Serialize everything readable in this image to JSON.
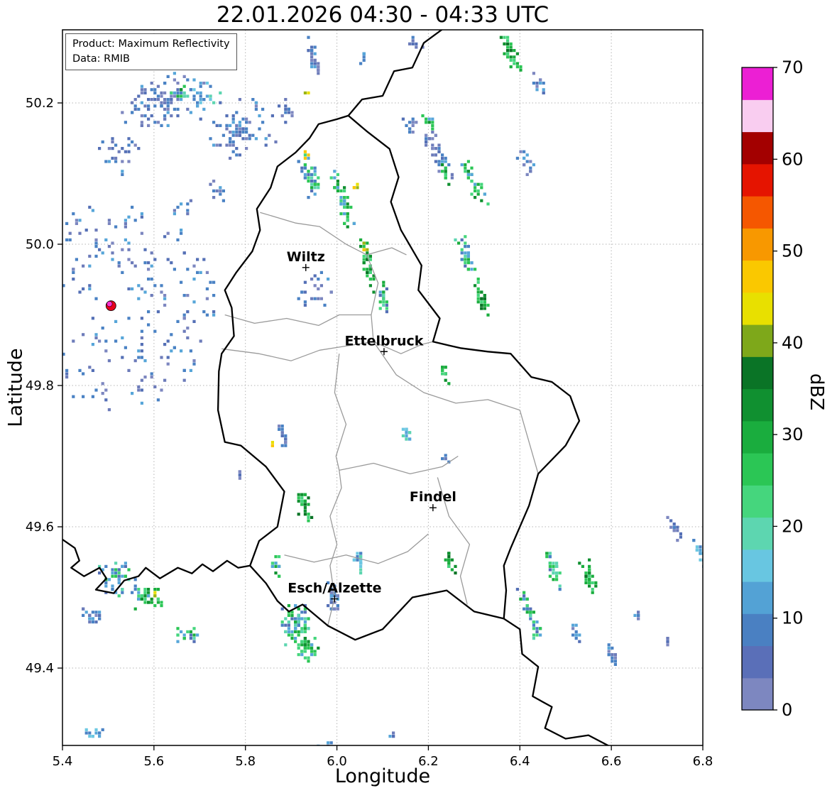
{
  "chart_data": {
    "type": "heatmap",
    "title": "22.01.2026 04:30 - 04:33 UTC",
    "xlabel": "Longitude",
    "ylabel": "Latitude",
    "xlim": [
      5.4,
      6.8
    ],
    "ylim": [
      49.29,
      50.3
    ],
    "x_ticks": [
      5.4,
      5.6,
      5.8,
      6.0,
      6.2,
      6.4,
      6.6,
      6.8
    ],
    "y_ticks": [
      49.4,
      49.6,
      49.8,
      50.0,
      50.2
    ],
    "grid": true,
    "annotations": {
      "product": "Product: Maximum Reflectivity",
      "source": "Data: RMIB"
    },
    "colorbar": {
      "label": "dBZ",
      "min": 0,
      "max": 70,
      "ticks": [
        0,
        10,
        20,
        30,
        40,
        50,
        60,
        70
      ],
      "colors": [
        "#7d87c0",
        "#5a6fb8",
        "#4a80c2",
        "#53a2d5",
        "#68c6e1",
        "#5dd6b0",
        "#45d67d",
        "#2bc655",
        "#1aad3e",
        "#109030",
        "#0a7426",
        "#7ea81a",
        "#e8e000",
        "#fac800",
        "#f89800",
        "#f55700",
        "#e51400",
        "#a30000",
        "#f9cdf0",
        "#ec1fd4"
      ]
    },
    "cities": [
      {
        "name": "Wiltz",
        "lon": 5.932,
        "lat": 49.967
      },
      {
        "name": "Ettelbruck",
        "lon": 6.103,
        "lat": 49.848
      },
      {
        "name": "Findel",
        "lon": 6.21,
        "lat": 49.627
      },
      {
        "name": "Esch/Alzette",
        "lon": 5.995,
        "lat": 49.498
      }
    ],
    "radar_site": {
      "lon": 5.506,
      "lat": 49.913,
      "outer_color": "#e8001c",
      "inner_color": "#ff2fd0"
    },
    "borders": {
      "luxembourg": [
        [
          6.025,
          50.182
        ],
        [
          6.065,
          50.16
        ],
        [
          6.115,
          50.135
        ],
        [
          6.135,
          50.095
        ],
        [
          6.118,
          50.06
        ],
        [
          6.14,
          50.02
        ],
        [
          6.185,
          49.97
        ],
        [
          6.178,
          49.935
        ],
        [
          6.225,
          49.895
        ],
        [
          6.21,
          49.862
        ],
        [
          6.27,
          49.853
        ],
        [
          6.33,
          49.848
        ],
        [
          6.38,
          49.845
        ],
        [
          6.425,
          49.812
        ],
        [
          6.47,
          49.805
        ],
        [
          6.51,
          49.785
        ],
        [
          6.53,
          49.75
        ],
        [
          6.5,
          49.715
        ],
        [
          6.44,
          49.675
        ],
        [
          6.42,
          49.63
        ],
        [
          6.38,
          49.57
        ],
        [
          6.365,
          49.545
        ],
        [
          6.37,
          49.51
        ],
        [
          6.365,
          49.47
        ],
        [
          6.3,
          49.48
        ],
        [
          6.24,
          49.51
        ],
        [
          6.165,
          49.5
        ],
        [
          6.1,
          49.455
        ],
        [
          6.04,
          49.44
        ],
        [
          5.98,
          49.46
        ],
        [
          5.925,
          49.49
        ],
        [
          5.895,
          49.48
        ],
        [
          5.87,
          49.495
        ],
        [
          5.845,
          49.52
        ],
        [
          5.81,
          49.545
        ],
        [
          5.83,
          49.58
        ],
        [
          5.87,
          49.6
        ],
        [
          5.885,
          49.65
        ],
        [
          5.845,
          49.685
        ],
        [
          5.79,
          49.715
        ],
        [
          5.755,
          49.72
        ],
        [
          5.74,
          49.765
        ],
        [
          5.742,
          49.82
        ],
        [
          5.748,
          49.845
        ],
        [
          5.775,
          49.87
        ],
        [
          5.77,
          49.91
        ],
        [
          5.755,
          49.935
        ],
        [
          5.78,
          49.96
        ],
        [
          5.815,
          49.99
        ],
        [
          5.832,
          50.02
        ],
        [
          5.825,
          50.05
        ],
        [
          5.855,
          50.08
        ],
        [
          5.87,
          50.11
        ],
        [
          5.91,
          50.13
        ],
        [
          5.94,
          50.15
        ],
        [
          5.96,
          50.17
        ],
        [
          6.0,
          50.177
        ],
        [
          6.025,
          50.182
        ]
      ],
      "belgium_germany": [
        [
          6.025,
          50.182
        ],
        [
          6.055,
          50.205
        ],
        [
          6.1,
          50.21
        ],
        [
          6.125,
          50.245
        ],
        [
          6.165,
          50.25
        ],
        [
          6.19,
          50.285
        ],
        [
          6.23,
          50.304
        ]
      ],
      "france_germany": [
        [
          6.365,
          49.47
        ],
        [
          6.4,
          49.455
        ],
        [
          6.405,
          49.42
        ],
        [
          6.44,
          49.402
        ],
        [
          6.428,
          49.36
        ],
        [
          6.47,
          49.345
        ],
        [
          6.455,
          49.315
        ],
        [
          6.5,
          49.3
        ],
        [
          6.55,
          49.305
        ],
        [
          6.6,
          49.288
        ]
      ],
      "france_belgium": [
        [
          5.4,
          49.582
        ],
        [
          5.427,
          49.57
        ],
        [
          5.437,
          49.552
        ],
        [
          5.419,
          49.542
        ],
        [
          5.447,
          49.53
        ],
        [
          5.481,
          49.542
        ],
        [
          5.496,
          49.527
        ],
        [
          5.473,
          49.511
        ],
        [
          5.512,
          49.506
        ],
        [
          5.535,
          49.524
        ],
        [
          5.566,
          49.53
        ],
        [
          5.582,
          49.542
        ],
        [
          5.613,
          49.527
        ],
        [
          5.652,
          49.542
        ],
        [
          5.683,
          49.534
        ],
        [
          5.706,
          49.547
        ],
        [
          5.729,
          49.537
        ],
        [
          5.76,
          49.552
        ],
        [
          5.784,
          49.542
        ],
        [
          5.81,
          49.545
        ]
      ],
      "cantons": [
        [
          [
            5.832,
            50.045
          ],
          [
            5.91,
            50.03
          ],
          [
            5.962,
            50.025
          ],
          [
            6.02,
            50.0
          ],
          [
            6.065,
            49.985
          ],
          [
            6.09,
            49.945
          ],
          [
            6.075,
            49.9
          ],
          [
            6.08,
            49.862
          ]
        ],
        [
          [
            6.065,
            49.985
          ],
          [
            6.12,
            49.995
          ],
          [
            6.152,
            49.985
          ]
        ],
        [
          [
            5.748,
            49.852
          ],
          [
            5.83,
            49.845
          ],
          [
            5.9,
            49.835
          ],
          [
            5.962,
            49.85
          ],
          [
            6.08,
            49.862
          ],
          [
            6.14,
            49.845
          ],
          [
            6.185,
            49.858
          ],
          [
            6.21,
            49.862
          ]
        ],
        [
          [
            6.005,
            49.845
          ],
          [
            5.995,
            49.79
          ],
          [
            6.02,
            49.745
          ],
          [
            5.998,
            49.7
          ],
          [
            6.005,
            49.68
          ],
          [
            6.01,
            49.655
          ],
          [
            5.985,
            49.615
          ],
          [
            6.0,
            49.575
          ],
          [
            5.985,
            49.545
          ],
          [
            5.995,
            49.5
          ],
          [
            5.98,
            49.46
          ]
        ],
        [
          [
            6.08,
            49.862
          ],
          [
            6.13,
            49.815
          ],
          [
            6.19,
            49.79
          ],
          [
            6.26,
            49.775
          ],
          [
            6.33,
            49.78
          ],
          [
            6.4,
            49.765
          ],
          [
            6.44,
            49.675
          ]
        ],
        [
          [
            6.005,
            49.68
          ],
          [
            6.08,
            49.69
          ],
          [
            6.16,
            49.675
          ],
          [
            6.23,
            49.685
          ],
          [
            6.265,
            49.7
          ]
        ],
        [
          [
            6.22,
            49.67
          ],
          [
            6.245,
            49.615
          ],
          [
            6.29,
            49.575
          ],
          [
            6.27,
            49.53
          ],
          [
            6.285,
            49.49
          ]
        ],
        [
          [
            5.885,
            49.56
          ],
          [
            5.95,
            49.55
          ],
          [
            6.02,
            49.56
          ],
          [
            6.09,
            49.548
          ],
          [
            6.155,
            49.565
          ],
          [
            6.2,
            49.59
          ]
        ],
        [
          [
            5.755,
            49.9
          ],
          [
            5.82,
            49.888
          ],
          [
            5.89,
            49.895
          ],
          [
            5.96,
            49.885
          ],
          [
            6.005,
            49.9
          ],
          [
            6.075,
            49.9
          ]
        ]
      ]
    },
    "echo_palettes": {
      "p_blue": [
        "#6d7cba",
        "#5570b6",
        "#4a82c4",
        "#4a82c4",
        "#57a6d9",
        "#7d87c0"
      ],
      "p_cyan": [
        "#57a6d9",
        "#6cc8e2",
        "#5dd6b0",
        "#4a82c4"
      ],
      "p_bluegreen": [
        "#4a82c4",
        "#57a6d9",
        "#45d67d",
        "#2bc655",
        "#5dd6b0",
        "#5570b6",
        "#1aad3e"
      ],
      "p_green": [
        "#2bc655",
        "#1aad3e",
        "#45d67d",
        "#109030",
        "#57a6d9",
        "#2bc655"
      ],
      "p_dgreen": [
        "#1aad3e",
        "#109030",
        "#0a7426",
        "#2bc655",
        "#45d67d"
      ],
      "p_yellow": [
        "#e8e000",
        "#fac800",
        "#9cb514"
      ]
    },
    "echo_clusters": [
      [
        5.62,
        50.205,
        0.105,
        0.042,
        -25,
        95,
        "p_blue"
      ],
      [
        5.78,
        50.165,
        0.075,
        0.05,
        -30,
        75,
        "p_blue"
      ],
      [
        5.7,
        50.21,
        0.05,
        0.025,
        -25,
        25,
        "p_cyan"
      ],
      [
        5.66,
        50.215,
        0.03,
        0.015,
        0,
        8,
        "p_green"
      ],
      [
        5.52,
        50.13,
        0.05,
        0.03,
        0,
        25,
        "p_blue"
      ],
      [
        5.88,
        50.19,
        0.03,
        0.02,
        -30,
        15,
        "p_blue"
      ],
      [
        5.74,
        50.08,
        0.025,
        0.02,
        0,
        10,
        "p_blue"
      ],
      [
        5.66,
        50.05,
        0.02,
        0.015,
        0,
        8,
        "p_blue"
      ],
      [
        5.95,
        50.26,
        0.012,
        0.038,
        -15,
        26,
        "p_blue"
      ],
      [
        5.93,
        50.215,
        0.006,
        0.006,
        0,
        2,
        "p_yellow"
      ],
      [
        6.17,
        50.285,
        0.02,
        0.012,
        0,
        8,
        "p_blue"
      ],
      [
        6.38,
        50.27,
        0.015,
        0.032,
        -25,
        30,
        "p_dgreen"
      ],
      [
        6.44,
        50.23,
        0.012,
        0.02,
        -25,
        12,
        "p_blue"
      ],
      [
        6.05,
        50.265,
        0.012,
        0.015,
        0,
        6,
        "p_blue"
      ],
      [
        5.94,
        50.1,
        0.02,
        0.04,
        -20,
        40,
        "p_bluegreen"
      ],
      [
        5.93,
        50.128,
        0.007,
        0.006,
        0,
        3,
        "p_yellow"
      ],
      [
        6.01,
        50.065,
        0.016,
        0.05,
        -15,
        45,
        "p_green"
      ],
      [
        6.035,
        50.085,
        0.006,
        0.01,
        0,
        4,
        "p_yellow"
      ],
      [
        6.16,
        50.17,
        0.02,
        0.015,
        0,
        12,
        "p_blue"
      ],
      [
        6.2,
        50.175,
        0.01,
        0.018,
        -25,
        10,
        "p_green"
      ],
      [
        6.22,
        50.125,
        0.02,
        0.045,
        -25,
        40,
        "p_blue"
      ],
      [
        6.235,
        50.1,
        0.01,
        0.02,
        -25,
        12,
        "p_green"
      ],
      [
        6.3,
        50.085,
        0.016,
        0.04,
        -25,
        35,
        "p_green"
      ],
      [
        6.41,
        50.12,
        0.015,
        0.02,
        -25,
        15,
        "p_blue"
      ],
      [
        6.065,
        49.975,
        0.011,
        0.042,
        -10,
        40,
        "p_dgreen"
      ],
      [
        6.06,
        49.998,
        0.006,
        0.01,
        0,
        4,
        "p_yellow"
      ],
      [
        6.1,
        49.928,
        0.012,
        0.028,
        -10,
        22,
        "p_bluegreen"
      ],
      [
        5.95,
        49.935,
        0.045,
        0.028,
        0,
        22,
        "p_blue"
      ],
      [
        6.28,
        49.985,
        0.014,
        0.035,
        -20,
        32,
        "p_bluegreen"
      ],
      [
        6.315,
        49.925,
        0.013,
        0.03,
        -20,
        28,
        "p_dgreen"
      ],
      [
        6.23,
        49.82,
        0.008,
        0.022,
        -10,
        15,
        "p_dgreen"
      ],
      [
        6.15,
        49.735,
        0.016,
        0.012,
        0,
        14,
        "p_cyan"
      ],
      [
        6.235,
        49.7,
        0.008,
        0.008,
        0,
        5,
        "p_blue"
      ],
      [
        5.88,
        49.73,
        0.008,
        0.027,
        -15,
        18,
        "p_blue"
      ],
      [
        5.857,
        49.716,
        0.005,
        0.008,
        0,
        3,
        "p_yellow"
      ],
      [
        5.79,
        49.675,
        0.01,
        0.012,
        0,
        6,
        "p_blue"
      ],
      [
        5.925,
        49.63,
        0.013,
        0.03,
        -15,
        30,
        "p_dgreen"
      ],
      [
        5.52,
        49.53,
        0.05,
        0.026,
        0,
        45,
        "p_bluegreen"
      ],
      [
        5.585,
        49.5,
        0.038,
        0.02,
        0,
        40,
        "p_green"
      ],
      [
        5.6,
        49.505,
        0.008,
        0.008,
        0,
        3,
        "p_yellow"
      ],
      [
        5.465,
        49.475,
        0.03,
        0.018,
        0,
        22,
        "p_blue"
      ],
      [
        5.665,
        49.45,
        0.028,
        0.015,
        0,
        18,
        "p_bluegreen"
      ],
      [
        5.91,
        49.465,
        0.036,
        0.03,
        0,
        85,
        "p_bluegreen"
      ],
      [
        5.93,
        49.43,
        0.025,
        0.018,
        0,
        40,
        "p_green"
      ],
      [
        5.99,
        49.5,
        0.014,
        0.026,
        0,
        35,
        "p_blue"
      ],
      [
        5.865,
        49.545,
        0.009,
        0.02,
        -10,
        14,
        "p_green"
      ],
      [
        6.045,
        49.555,
        0.01,
        0.022,
        -10,
        18,
        "p_cyan"
      ],
      [
        6.245,
        49.55,
        0.009,
        0.022,
        -10,
        20,
        "p_dgreen"
      ],
      [
        6.42,
        49.475,
        0.013,
        0.042,
        -20,
        40,
        "p_bluegreen"
      ],
      [
        6.47,
        49.545,
        0.012,
        0.035,
        -20,
        32,
        "p_bluegreen"
      ],
      [
        6.55,
        49.53,
        0.012,
        0.03,
        -20,
        32,
        "p_dgreen"
      ],
      [
        6.52,
        49.45,
        0.012,
        0.015,
        -20,
        10,
        "p_blue"
      ],
      [
        6.6,
        49.42,
        0.01,
        0.022,
        -20,
        14,
        "p_blue"
      ],
      [
        6.735,
        49.6,
        0.01,
        0.02,
        -30,
        14,
        "p_blue"
      ],
      [
        6.79,
        49.565,
        0.008,
        0.026,
        -20,
        15,
        "p_cyan"
      ],
      [
        6.655,
        49.475,
        0.01,
        0.01,
        0,
        7,
        "p_blue"
      ],
      [
        6.72,
        49.44,
        0.008,
        0.008,
        0,
        5,
        "p_blue"
      ],
      [
        5.47,
        49.31,
        0.05,
        0.007,
        0,
        12,
        "p_cyan"
      ],
      [
        5.97,
        49.29,
        0.02,
        0.01,
        0,
        10,
        "p_blue"
      ],
      [
        6.12,
        49.305,
        0.008,
        0.006,
        0,
        4,
        "p_blue"
      ]
    ],
    "clutter_ring": {
      "lon": 5.506,
      "lat": 49.913,
      "r_in": 0.028,
      "r_out": 0.235,
      "n": 260,
      "pal": "p_blue"
    }
  }
}
